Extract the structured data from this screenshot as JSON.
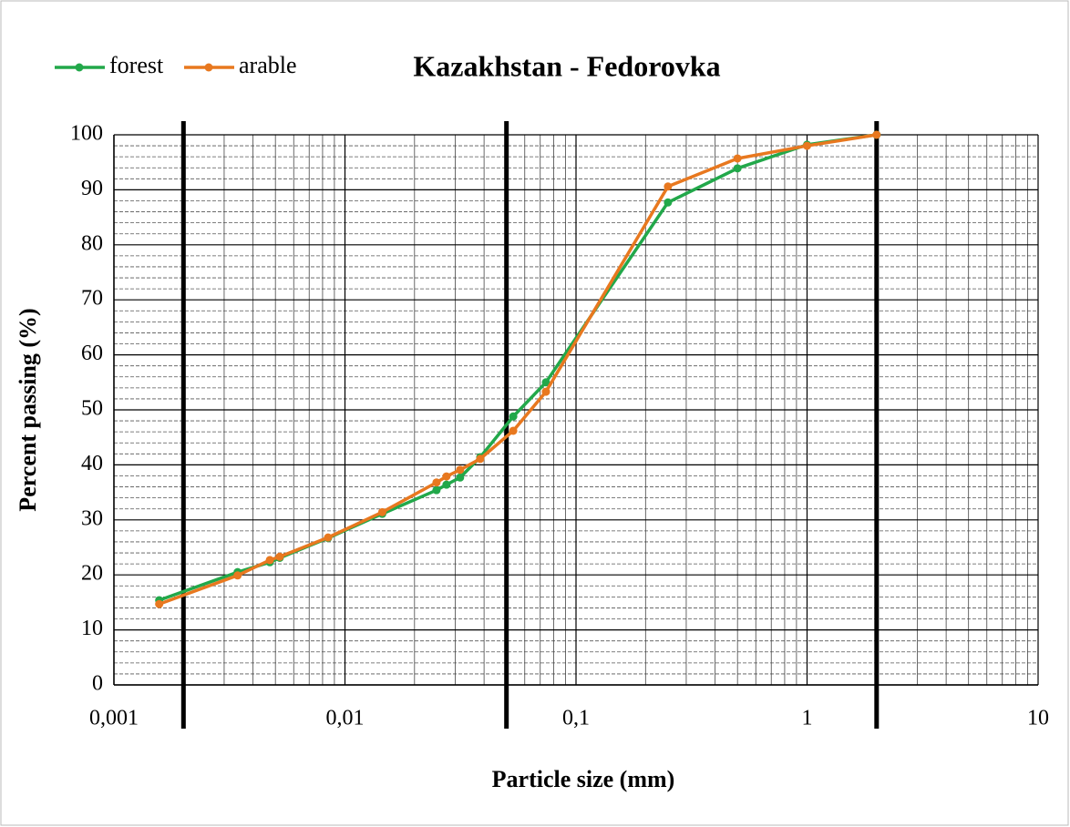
{
  "chart_data": {
    "type": "line",
    "title": "Kazakhstan - Fedorovka",
    "x_label": "Particle size (mm)",
    "y_label": "Percent passing (%)",
    "x": [
      0.00157,
      0.00343,
      0.00473,
      0.00522,
      0.00845,
      0.0145,
      0.0249,
      0.0275,
      0.0315,
      0.0385,
      0.0535,
      0.0741,
      0.25,
      0.5,
      1,
      2
    ],
    "series": [
      {
        "name": "forest",
        "color": "#22a84a",
        "values": [
          15.4,
          20.5,
          22.3,
          23.1,
          26.7,
          31.1,
          35.4,
          36.4,
          37.7,
          41.4,
          48.8,
          55.0,
          87.7,
          93.9,
          98.2,
          100
        ]
      },
      {
        "name": "arable",
        "color": "#e8781f",
        "values": [
          14.7,
          19.9,
          22.7,
          23.3,
          26.8,
          31.4,
          36.8,
          37.9,
          39.1,
          41.1,
          46.2,
          53.3,
          90.6,
          95.7,
          98.0,
          100
        ]
      }
    ],
    "xscale": "log",
    "xlim": [
      0.001,
      10
    ],
    "xticks": [
      {
        "value": 0.001,
        "label": "0,001"
      },
      {
        "value": 0.01,
        "label": "0,01"
      },
      {
        "value": 0.1,
        "label": "0,1"
      },
      1,
      10
    ],
    "ylim": [
      0,
      100
    ],
    "yticks": [
      0,
      10,
      20,
      30,
      40,
      50,
      60,
      70,
      80,
      90,
      100
    ],
    "grid": true,
    "minor_grid": true,
    "vlines": [
      0.002,
      0.05,
      2
    ],
    "legend": "top-left"
  }
}
